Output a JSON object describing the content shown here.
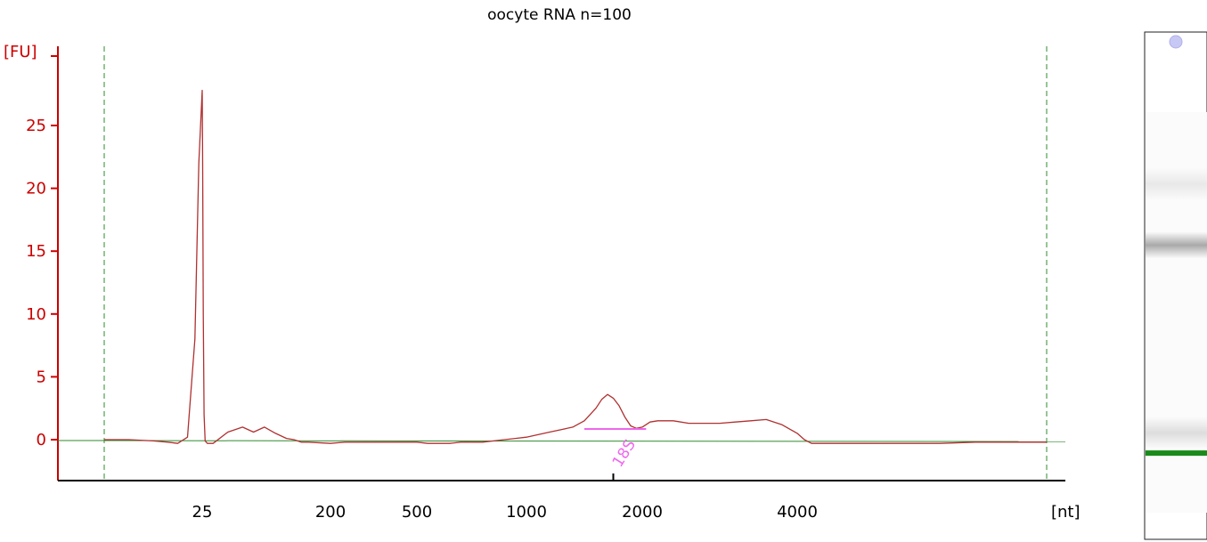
{
  "chart_data": {
    "type": "line",
    "title": "oocyte RNA n=100",
    "ylabel": "[FU]",
    "xlabel": "[nt]",
    "ylim": [
      -3.2,
      30.5
    ],
    "yticks": [
      0,
      5,
      10,
      15,
      20,
      25
    ],
    "yticks_labels": [
      "0",
      "5",
      "10",
      "15",
      "20",
      "25"
    ],
    "xticks": [
      {
        "label": "25",
        "value": 25
      },
      {
        "label": "200",
        "value": 200
      },
      {
        "label": "500",
        "value": 500
      },
      {
        "label": "1000",
        "value": 1000
      },
      {
        "label": "2000",
        "value": 2000
      },
      {
        "label": "4000",
        "value": 4000
      }
    ],
    "grid": false,
    "legend": "none",
    "x_scale": "nonlinear (electropherogram ladder)",
    "colors": {
      "trace": "#b03030",
      "baseline": "#2e8b2e",
      "axes": "#cc0000",
      "marker_lines": "#2e8b2e",
      "peak_annotation": "#ee66ee",
      "lane_band": "#1a8a1a"
    },
    "series": [
      {
        "x": [
          5,
          10,
          15,
          18,
          20,
          22,
          23.5,
          24.3,
          25,
          25.6,
          26.4,
          27.5,
          29,
          32,
          40,
          60,
          80,
          95,
          110,
          125,
          140,
          150,
          160,
          170,
          200,
          250,
          300,
          350,
          400,
          450,
          500,
          550,
          600,
          650,
          700,
          750,
          800,
          850,
          900,
          950,
          1000,
          1100,
          1200,
          1300,
          1400,
          1500,
          1600,
          1650,
          1700,
          1750,
          1800,
          1850,
          1900,
          1950,
          2000,
          2050,
          2100,
          2200,
          2300,
          2400,
          2600,
          2800,
          3000,
          3200,
          3400,
          3600,
          3800,
          4000,
          4200,
          4400,
          4600,
          5000,
          6000,
          7000,
          8000,
          9000,
          10000,
          11000
        ],
        "y": [
          0.0,
          0.0,
          -0.1,
          -0.2,
          -0.3,
          0.2,
          8.0,
          22.0,
          27.8,
          22.0,
          10.0,
          2.0,
          -0.1,
          -0.3,
          -0.3,
          0.6,
          1.0,
          0.6,
          1.0,
          0.5,
          0.1,
          0.0,
          -0.2,
          -0.2,
          -0.3,
          -0.2,
          -0.2,
          -0.2,
          -0.2,
          -0.2,
          -0.2,
          -0.3,
          -0.3,
          -0.3,
          -0.2,
          -0.2,
          -0.2,
          -0.1,
          0.0,
          0.1,
          0.2,
          0.4,
          0.6,
          0.8,
          1.0,
          1.5,
          2.5,
          3.2,
          3.6,
          3.3,
          2.7,
          1.8,
          1.1,
          0.9,
          1.0,
          1.2,
          1.4,
          1.5,
          1.5,
          1.5,
          1.3,
          1.3,
          1.3,
          1.4,
          1.5,
          1.6,
          1.2,
          0.5,
          0.0,
          -0.3,
          -0.3,
          -0.3,
          -0.3,
          -0.3,
          -0.3,
          -0.2,
          -0.2,
          -0.2
        ]
      }
    ],
    "marker_lines_x": [
      5,
      11000
    ],
    "peak_annotation": {
      "label": "18S",
      "x": 1750,
      "range": [
        1500,
        2050
      ]
    }
  },
  "gel_lane": {
    "bands": [
      {
        "position": 0.3,
        "intensity": 0.12
      },
      {
        "position": 0.42,
        "intensity": 0.45
      },
      {
        "position": 0.79,
        "intensity": 0.18
      }
    ],
    "marker_band_position": 0.83,
    "marker_band_color": "#1a8a1a",
    "well_icon": "gel-well-icon"
  }
}
